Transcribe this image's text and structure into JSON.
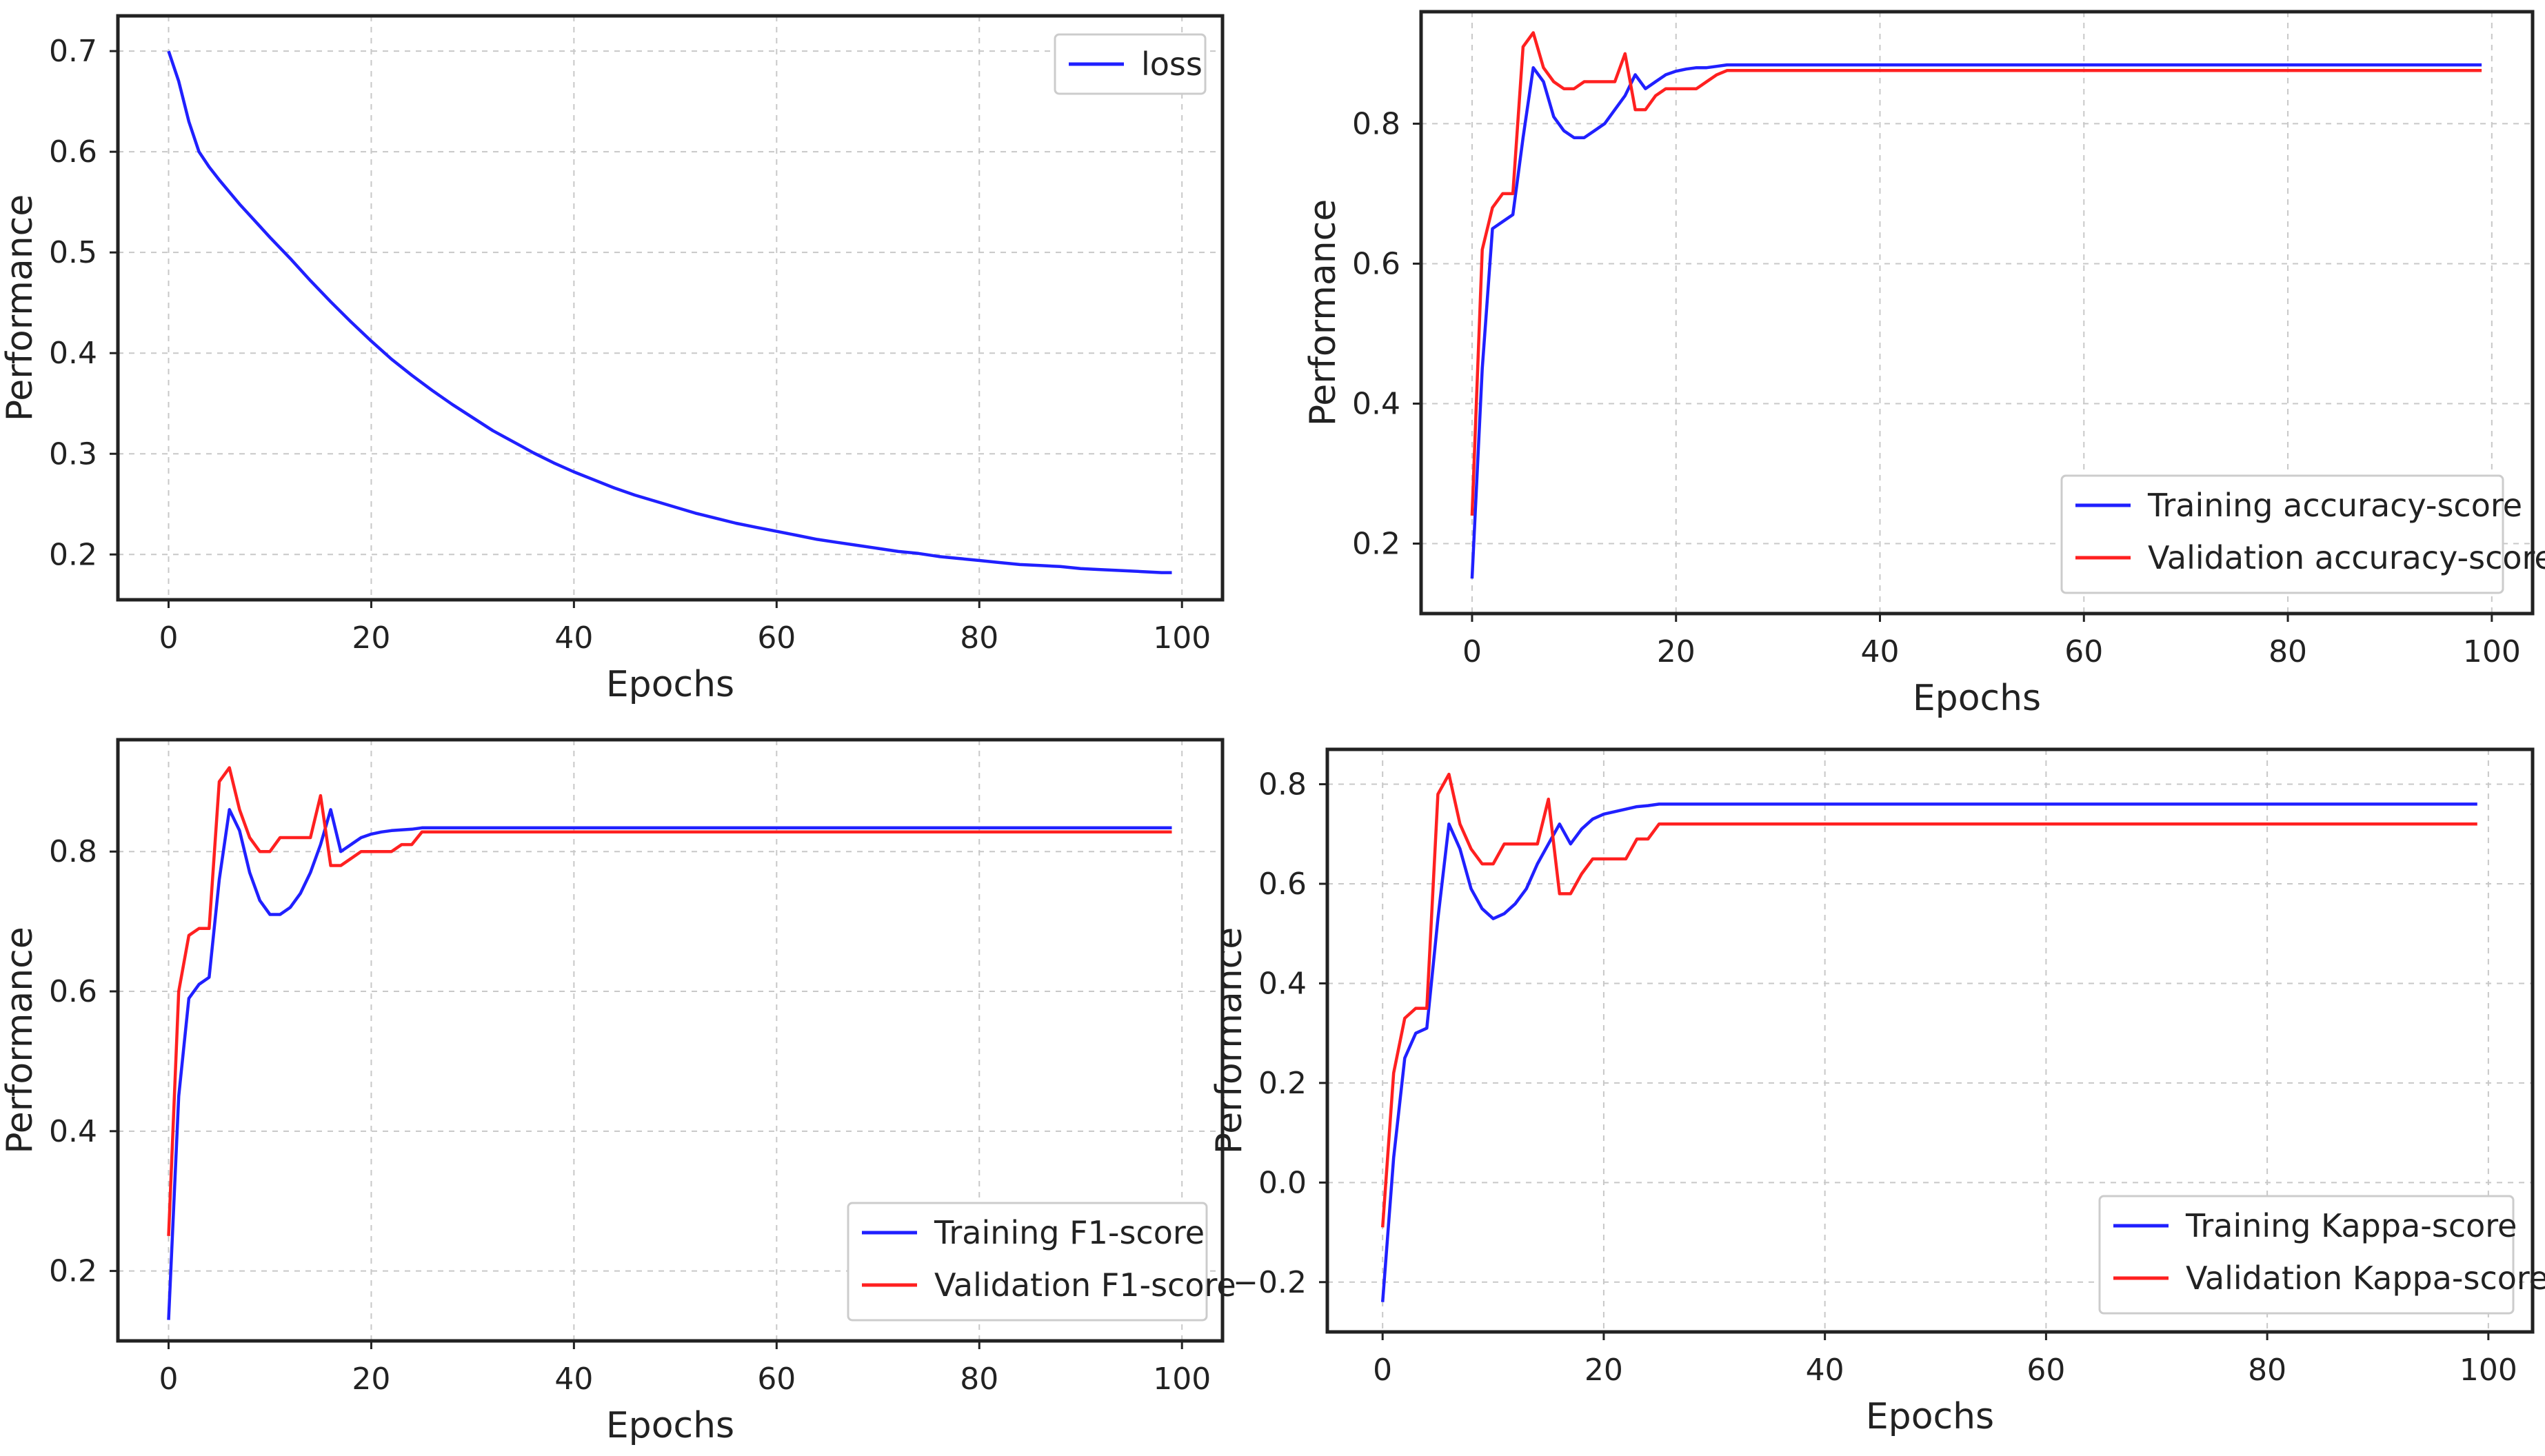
{
  "colors": {
    "training": "#2020ff",
    "validation": "#ff2020",
    "grid": "#c8c8c8",
    "frame": "#222222"
  },
  "chart_data": [
    {
      "id": "loss",
      "type": "line",
      "title": "",
      "xlabel": "Epochs",
      "ylabel": "Performance",
      "xlim": [
        -5,
        104
      ],
      "ylim": [
        0.155,
        0.735
      ],
      "xticks": [
        0,
        20,
        40,
        60,
        80,
        100
      ],
      "yticks": [
        0.2,
        0.3,
        0.4,
        0.5,
        0.6,
        0.7
      ],
      "ytick_labels": [
        "0.2",
        "0.3",
        "0.4",
        "0.5",
        "0.6",
        "0.7"
      ],
      "grid": true,
      "legend_position": "top-right",
      "series": [
        {
          "name": "loss",
          "color": "#2020ff",
          "x": [
            0,
            1,
            2,
            3,
            4,
            5,
            6,
            7,
            8,
            9,
            10,
            12,
            14,
            16,
            18,
            20,
            22,
            24,
            26,
            28,
            30,
            32,
            34,
            36,
            38,
            40,
            42,
            44,
            46,
            48,
            50,
            52,
            54,
            56,
            58,
            60,
            62,
            64,
            66,
            68,
            70,
            72,
            74,
            76,
            78,
            80,
            82,
            84,
            86,
            88,
            90,
            92,
            94,
            96,
            98,
            99
          ],
          "y": [
            0.7,
            0.67,
            0.63,
            0.6,
            0.585,
            0.572,
            0.56,
            0.548,
            0.537,
            0.526,
            0.515,
            0.494,
            0.472,
            0.451,
            0.431,
            0.412,
            0.394,
            0.378,
            0.363,
            0.349,
            0.336,
            0.323,
            0.312,
            0.301,
            0.291,
            0.282,
            0.274,
            0.266,
            0.259,
            0.253,
            0.247,
            0.241,
            0.236,
            0.231,
            0.227,
            0.223,
            0.219,
            0.215,
            0.212,
            0.209,
            0.206,
            0.203,
            0.201,
            0.198,
            0.196,
            0.194,
            0.192,
            0.19,
            0.189,
            0.188,
            0.186,
            0.185,
            0.184,
            0.183,
            0.182,
            0.182
          ]
        }
      ]
    },
    {
      "id": "accuracy",
      "type": "line",
      "title": "",
      "xlabel": "Epochs",
      "ylabel": "Performance",
      "xlim": [
        -5,
        104
      ],
      "ylim": [
        0.1,
        0.96
      ],
      "xticks": [
        0,
        20,
        40,
        60,
        80,
        100
      ],
      "yticks": [
        0.2,
        0.4,
        0.6,
        0.8
      ],
      "ytick_labels": [
        "0.2",
        "0.4",
        "0.6",
        "0.8"
      ],
      "grid": true,
      "legend_position": "lower-right",
      "series": [
        {
          "name": "Training accuracy-score",
          "color": "#2020ff",
          "x": [
            0,
            1,
            2,
            3,
            4,
            5,
            6,
            7,
            8,
            9,
            10,
            11,
            12,
            13,
            14,
            15,
            16,
            17,
            18,
            19,
            20,
            21,
            22,
            23,
            24,
            25,
            99
          ],
          "y": [
            0.15,
            0.45,
            0.65,
            0.66,
            0.67,
            0.78,
            0.88,
            0.86,
            0.81,
            0.79,
            0.78,
            0.78,
            0.79,
            0.8,
            0.82,
            0.84,
            0.87,
            0.85,
            0.86,
            0.87,
            0.875,
            0.878,
            0.88,
            0.88,
            0.882,
            0.884,
            0.884
          ]
        },
        {
          "name": "Validation accuracy-score",
          "color": "#ff2020",
          "x": [
            0,
            1,
            2,
            3,
            4,
            5,
            6,
            7,
            8,
            9,
            10,
            11,
            12,
            13,
            14,
            15,
            16,
            17,
            18,
            19,
            20,
            21,
            22,
            23,
            24,
            25,
            99
          ],
          "y": [
            0.24,
            0.62,
            0.68,
            0.7,
            0.7,
            0.91,
            0.93,
            0.88,
            0.86,
            0.85,
            0.85,
            0.86,
            0.86,
            0.86,
            0.86,
            0.9,
            0.82,
            0.82,
            0.84,
            0.85,
            0.85,
            0.85,
            0.85,
            0.86,
            0.87,
            0.876,
            0.876
          ]
        }
      ]
    },
    {
      "id": "f1",
      "type": "line",
      "title": "",
      "xlabel": "Epochs",
      "ylabel": "Performance",
      "xlim": [
        -5,
        104
      ],
      "ylim": [
        0.1,
        0.96
      ],
      "xticks": [
        0,
        20,
        40,
        60,
        80,
        100
      ],
      "yticks": [
        0.2,
        0.4,
        0.6,
        0.8
      ],
      "ytick_labels": [
        "0.2",
        "0.4",
        "0.6",
        "0.8"
      ],
      "grid": true,
      "legend_position": "lower-right",
      "series": [
        {
          "name": "Training F1-score",
          "color": "#2020ff",
          "x": [
            0,
            1,
            2,
            3,
            4,
            5,
            6,
            7,
            8,
            9,
            10,
            11,
            12,
            13,
            14,
            15,
            16,
            17,
            18,
            19,
            20,
            21,
            22,
            23,
            24,
            25,
            99
          ],
          "y": [
            0.13,
            0.45,
            0.59,
            0.61,
            0.62,
            0.76,
            0.86,
            0.83,
            0.77,
            0.73,
            0.71,
            0.71,
            0.72,
            0.74,
            0.77,
            0.81,
            0.86,
            0.8,
            0.81,
            0.82,
            0.825,
            0.828,
            0.83,
            0.831,
            0.832,
            0.834,
            0.834
          ]
        },
        {
          "name": "Validation F1-score",
          "color": "#ff2020",
          "x": [
            0,
            1,
            2,
            3,
            4,
            5,
            6,
            7,
            8,
            9,
            10,
            11,
            12,
            13,
            14,
            15,
            16,
            17,
            18,
            19,
            20,
            21,
            22,
            23,
            24,
            25,
            99
          ],
          "y": [
            0.25,
            0.6,
            0.68,
            0.69,
            0.69,
            0.9,
            0.92,
            0.86,
            0.82,
            0.8,
            0.8,
            0.82,
            0.82,
            0.82,
            0.82,
            0.88,
            0.78,
            0.78,
            0.79,
            0.8,
            0.8,
            0.8,
            0.8,
            0.81,
            0.81,
            0.828,
            0.828
          ]
        }
      ]
    },
    {
      "id": "kappa",
      "type": "line",
      "title": "",
      "xlabel": "Epochs",
      "ylabel": "Performance",
      "xlim": [
        -5,
        104
      ],
      "ylim": [
        -0.3,
        0.87
      ],
      "xticks": [
        0,
        20,
        40,
        60,
        80,
        100
      ],
      "yticks": [
        -0.2,
        0.0,
        0.2,
        0.4,
        0.6,
        0.8
      ],
      "ytick_labels": [
        "−0.2",
        "0.0",
        "0.2",
        "0.4",
        "0.6",
        "0.8"
      ],
      "grid": true,
      "legend_position": "lower-right",
      "series": [
        {
          "name": "Training Kappa-score",
          "color": "#2020ff",
          "x": [
            0,
            1,
            2,
            3,
            4,
            5,
            6,
            7,
            8,
            9,
            10,
            11,
            12,
            13,
            14,
            15,
            16,
            17,
            18,
            19,
            20,
            21,
            22,
            23,
            24,
            25,
            99
          ],
          "y": [
            -0.24,
            0.05,
            0.25,
            0.3,
            0.31,
            0.53,
            0.72,
            0.67,
            0.59,
            0.55,
            0.53,
            0.54,
            0.56,
            0.59,
            0.64,
            0.68,
            0.72,
            0.68,
            0.71,
            0.73,
            0.74,
            0.745,
            0.75,
            0.755,
            0.757,
            0.76,
            0.76
          ]
        },
        {
          "name": "Validation Kappa-score",
          "color": "#ff2020",
          "x": [
            0,
            1,
            2,
            3,
            4,
            5,
            6,
            7,
            8,
            9,
            10,
            11,
            12,
            13,
            14,
            15,
            16,
            17,
            18,
            19,
            20,
            21,
            22,
            23,
            24,
            25,
            99
          ],
          "y": [
            -0.09,
            0.22,
            0.33,
            0.35,
            0.35,
            0.78,
            0.82,
            0.72,
            0.67,
            0.64,
            0.64,
            0.68,
            0.68,
            0.68,
            0.68,
            0.77,
            0.58,
            0.58,
            0.62,
            0.65,
            0.65,
            0.65,
            0.65,
            0.69,
            0.69,
            0.72,
            0.72
          ]
        }
      ]
    }
  ]
}
